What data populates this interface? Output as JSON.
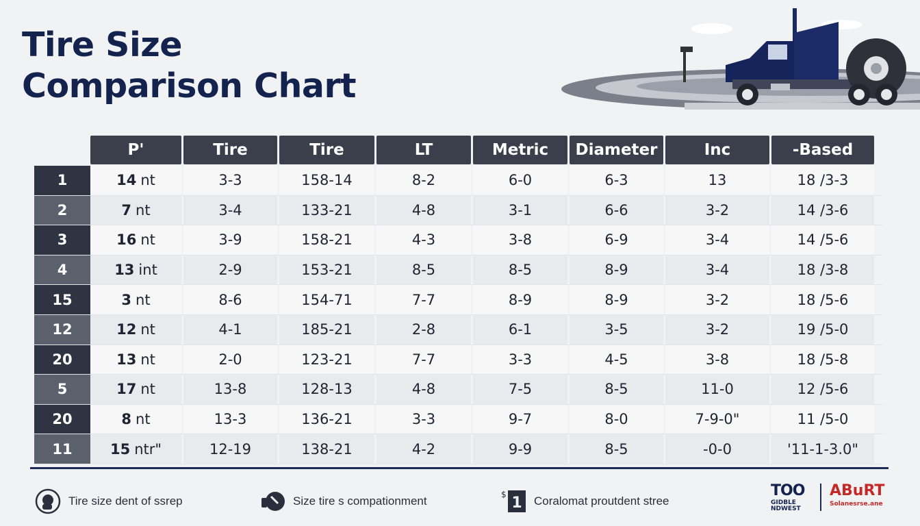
{
  "title": {
    "line1": "Tire Size",
    "line2": "Comparison Chart"
  },
  "table": {
    "headers": [
      "P'",
      "Tire",
      "Tire",
      "LT",
      "Metric",
      "Diameter",
      "Inc",
      "-Based"
    ],
    "rows": [
      {
        "idx": "1",
        "c0n": "14",
        "c0t": "nt",
        "c1": "3-3",
        "c2": "158-14",
        "c3": "8-2",
        "c4": "6-0",
        "c5": "6-3",
        "c6": "13",
        "c7": "18 /3-3"
      },
      {
        "idx": "2",
        "c0n": "7",
        "c0t": "nt",
        "c1": "3-4",
        "c2": "133-21",
        "c3": "4-8",
        "c4": "3-1",
        "c5": "6-6",
        "c6": "3-2",
        "c7": "14 /3-6"
      },
      {
        "idx": "3",
        "c0n": "16",
        "c0t": "nt",
        "c1": "3-9",
        "c2": "158-21",
        "c3": "4-3",
        "c4": "3-8",
        "c5": "6-9",
        "c6": "3-4",
        "c7": "14 /5-6"
      },
      {
        "idx": "4",
        "c0n": "13",
        "c0t": "int",
        "c1": "2-9",
        "c2": "153-21",
        "c3": "8-5",
        "c4": "8-5",
        "c5": "8-9",
        "c6": "3-4",
        "c7": "18 /3-8"
      },
      {
        "idx": "15",
        "c0n": "3",
        "c0t": "nt",
        "c1": "8-6",
        "c2": "154-71",
        "c3": "7-7",
        "c4": "8-9",
        "c5": "8-9",
        "c6": "3-2",
        "c7": "18 /5-6"
      },
      {
        "idx": "12",
        "c0n": "12",
        "c0t": "nt",
        "c1": "4-1",
        "c2": "185-21",
        "c3": "2-8",
        "c4": "6-1",
        "c5": "3-5",
        "c6": "3-2",
        "c7": "19 /5-0"
      },
      {
        "idx": "20",
        "c0n": "13",
        "c0t": "nt",
        "c1": "2-0",
        "c2": "123-21",
        "c3": "7-7",
        "c4": "3-3",
        "c5": "4-5",
        "c6": "3-8",
        "c7": "18 /5-8"
      },
      {
        "idx": "5",
        "c0n": "17",
        "c0t": "nt",
        "c1": "13-8",
        "c2": "128-13",
        "c3": "4-8",
        "c4": "7-5",
        "c5": "8-5",
        "c6": "11-0",
        "c7": "12 /5-6"
      },
      {
        "idx": "20",
        "c0n": "8",
        "c0t": "nt",
        "c1": "13-3",
        "c2": "136-21",
        "c3": "3-3",
        "c4": "9-7",
        "c5": "8-0",
        "c6": "7-9-0\"",
        "c7": "11 /5-0"
      },
      {
        "idx": "11",
        "c0n": "15",
        "c0t": "ntr\"",
        "c1": "12-19",
        "c2": "138-21",
        "c3": "4-2",
        "c4": "9-9",
        "c5": "8-5",
        "c6": "-0-0",
        "c7": "'11-1-3.0\""
      }
    ]
  },
  "footer": {
    "item1": {
      "icon": "tire-hand-icon",
      "label": "Tire size dent of ssrep"
    },
    "item2": {
      "icon": "tire-icon",
      "label": "Size tire s compationment"
    },
    "item3": {
      "icon": "tag-number-icon",
      "glyph": "1",
      "label": "Coralomat proutdent stree"
    },
    "logo1": {
      "big": "TOO",
      "small": "GIDBLE NDWEST"
    },
    "logo2": {
      "big": "ABuRT",
      "small": "Solanesrse.ane"
    }
  },
  "colors": {
    "navy": "#14224e",
    "header_bg": "#3a3f4b",
    "index_dark": "#2e3442",
    "index_light": "#5a606c",
    "accent_red": "#c62828"
  }
}
